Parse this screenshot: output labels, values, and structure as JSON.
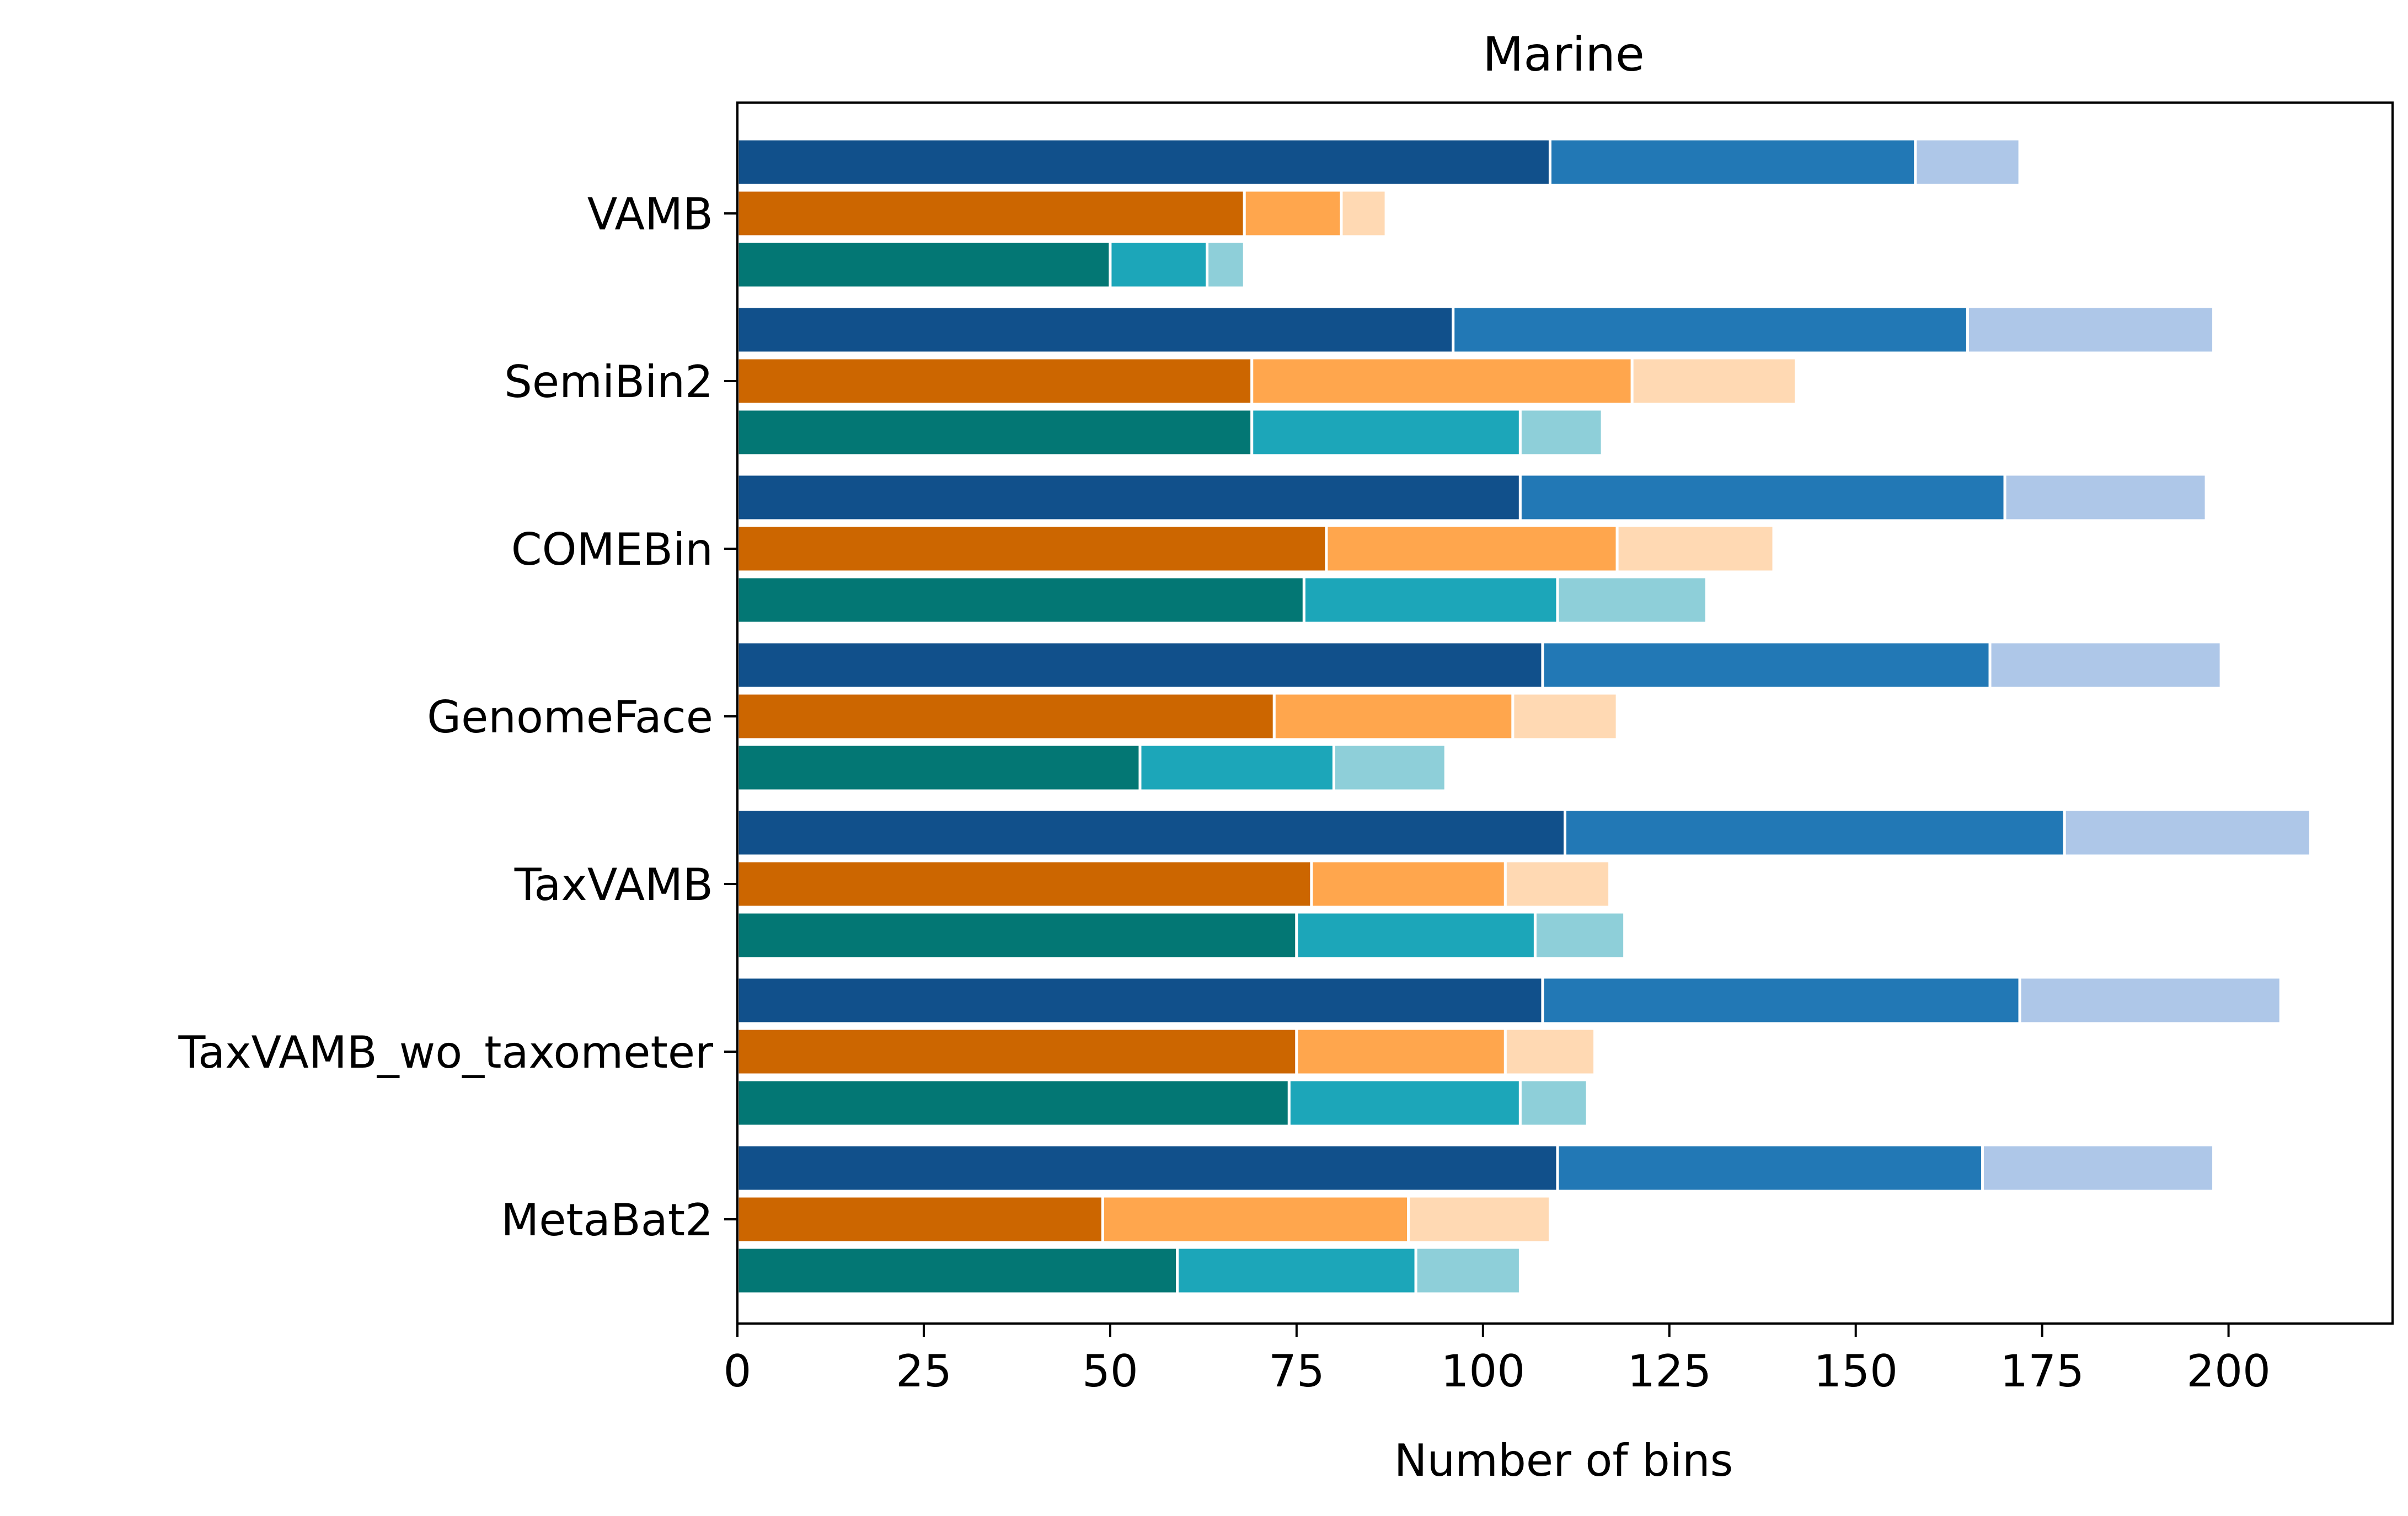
{
  "chart_data": {
    "type": "bar",
    "orientation": "horizontal",
    "stacked": true,
    "title": "Marine",
    "xlabel": "Number of bins",
    "ylabel": "",
    "xlim": [
      0,
      222
    ],
    "xticks": [
      "0",
      "25",
      "50",
      "75",
      "100",
      "125",
      "150",
      "175",
      "200"
    ],
    "grid": false,
    "legend": null,
    "categories": [
      "VAMB",
      "SemiBin2",
      "COMEBin",
      "GenomeFace",
      "TaxVAMB",
      "TaxVAMB_wo_taxometer",
      "MetaBat2"
    ],
    "groups": [
      {
        "colors": [
          "#11508b",
          "#2278b5",
          "#aec7e8"
        ],
        "cumulative_values": [
          [
            109,
            158,
            172
          ],
          [
            96,
            165,
            198
          ],
          [
            105,
            170,
            197
          ],
          [
            108,
            168,
            199
          ],
          [
            111,
            178,
            211
          ],
          [
            108,
            172,
            207
          ],
          [
            110,
            167,
            198
          ]
        ]
      },
      {
        "colors": [
          "#cc6600",
          "#ffa64d",
          "#ffd9b3"
        ],
        "cumulative_values": [
          [
            68,
            81,
            87
          ],
          [
            69,
            120,
            142
          ],
          [
            79,
            118,
            139
          ],
          [
            72,
            104,
            118
          ],
          [
            77,
            103,
            117
          ],
          [
            75,
            103,
            115
          ],
          [
            49,
            90,
            109
          ]
        ]
      },
      {
        "colors": [
          "#037774",
          "#1ca6b9",
          "#8ecfd9"
        ],
        "cumulative_values": [
          [
            50,
            63,
            68
          ],
          [
            69,
            105,
            116
          ],
          [
            76,
            110,
            130
          ],
          [
            54,
            80,
            95
          ],
          [
            75,
            107,
            119
          ],
          [
            74,
            105,
            114
          ],
          [
            59,
            91,
            105
          ]
        ]
      }
    ]
  }
}
